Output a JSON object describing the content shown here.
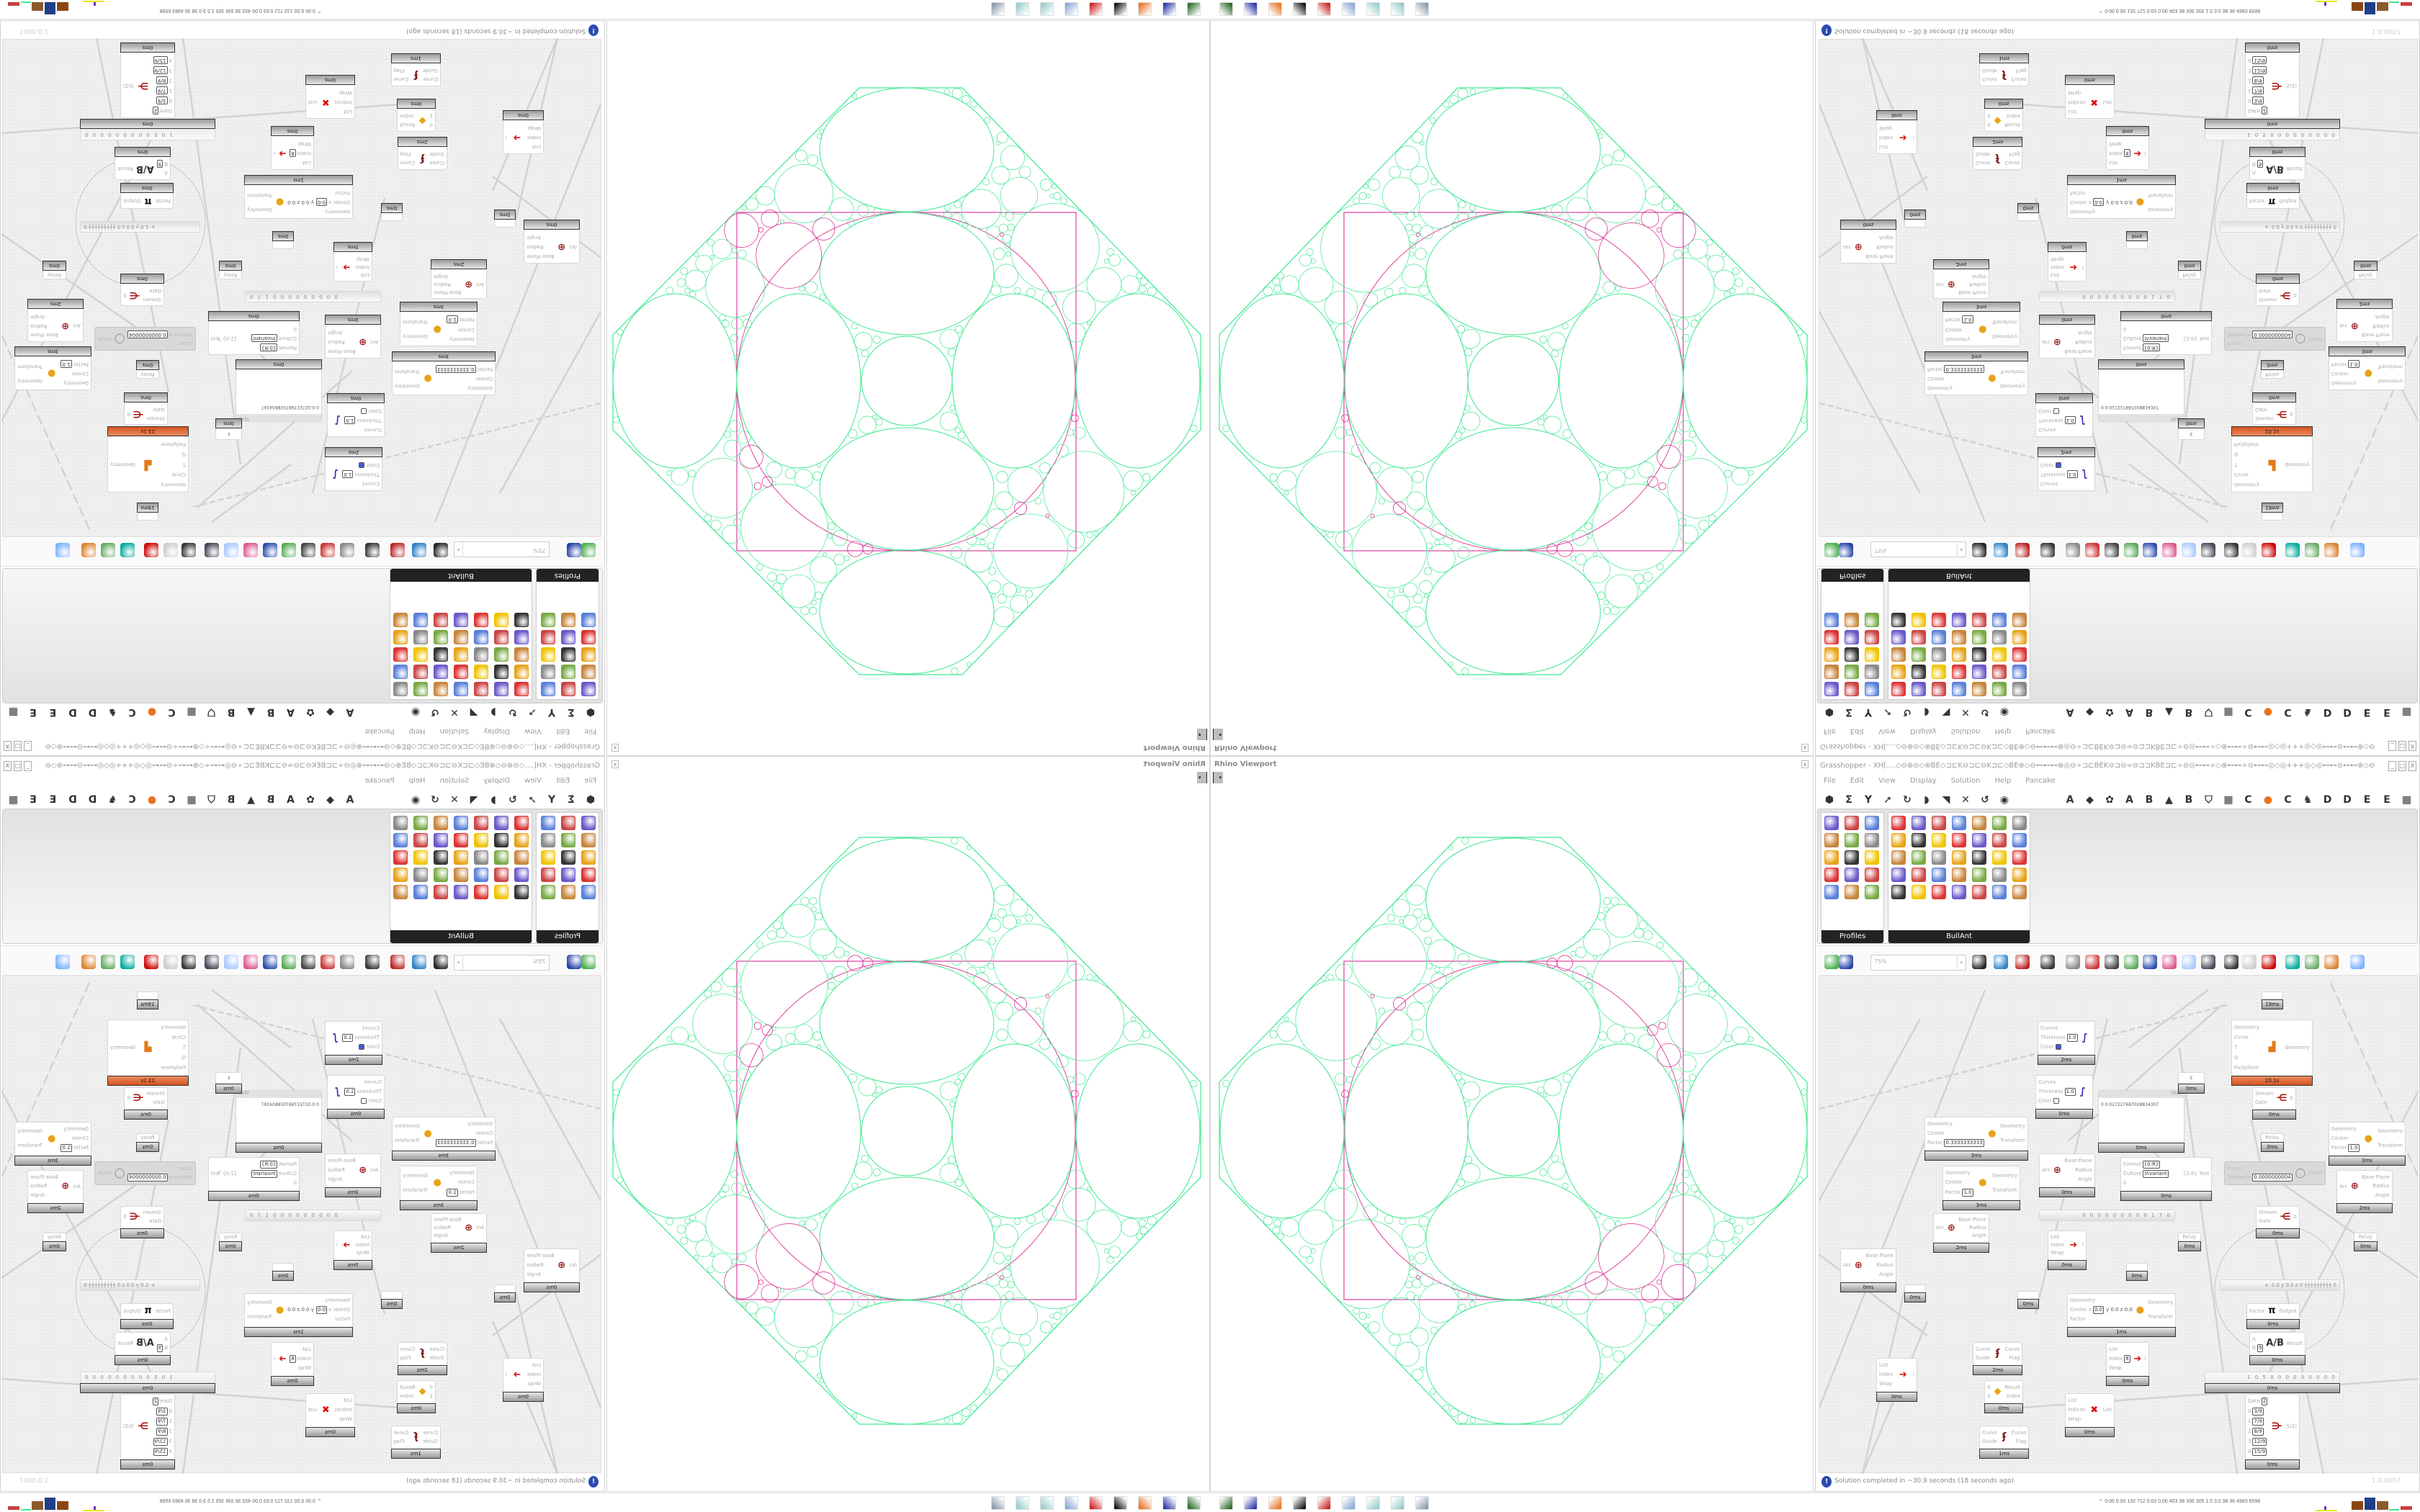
{
  "viewport": {
    "title": "Rhino Viewport",
    "close": "x",
    "dropdown": "▾",
    "colors": {
      "circles": "#3ee890",
      "frame": "#d81b8c"
    }
  },
  "grasshopper": {
    "title": "Grasshopper - XH[....◇⊖⊕⊖◇⊕BE◇⊐⊏K⊖⊐⊏⊖K⊐⊏◇BE⊕◇⊖⊷⊷⊷⊕◎⊖÷⊐⊏BEK⊖⊐⊖∞⊖⊐⊐KBE⊐⊏÷⊖◎⊷⊷÷◇⊕⊷⊷÷⊖⊷⊷◎◇◎+++◎◇◎⊷⊷⊖⊷⊷⊕◇⊖⊷⊷◎⊖÷⊐⊏BEK⊖⊐⊖∞⊖...",
    "window_buttons": [
      "_",
      "□",
      "X"
    ],
    "menu": [
      "File",
      "Edit",
      "View",
      "Display",
      "Solution",
      "Help",
      "Pancake"
    ],
    "tab_icons_left": [
      "⬢",
      "Σ",
      "Y",
      "➚",
      "↻",
      "◗",
      "◥",
      "✕",
      "↺",
      "◉"
    ],
    "tab_icons_right": [
      "A",
      "◆",
      "✿",
      "A",
      "B",
      "▲",
      "B",
      "⛉",
      "▦",
      "C",
      "●",
      "C",
      "♞",
      "D",
      "D",
      "E",
      "E",
      "▦"
    ],
    "palettes": [
      {
        "label": "Profiles"
      },
      {
        "label": "BullAnt"
      }
    ],
    "toolbar": {
      "zoom": "75%",
      "zoom_arrow": "▾"
    },
    "status": {
      "icon": "!",
      "text": "Solution completed in ~30.9 seconds (18 seconds ago)",
      "version": "1.0.0007"
    },
    "accent": "#d4541f"
  },
  "canvas": {
    "components": [
      {
        "kind": "std",
        "name": "custom-preview",
        "inputs": [
          {
            "label": "Curves"
          },
          {
            "label": "Thickness",
            "value": "1.0"
          },
          {
            "label": "Color",
            "swatch": "#3b5bdb"
          }
        ],
        "outputs": [],
        "glyph": "∫",
        "glyph_color": "#3a1fb0",
        "footer": "2ms"
      },
      {
        "kind": "std",
        "name": "custom-preview",
        "inputs": [
          {
            "label": "Curves"
          },
          {
            "label": "Thickness",
            "value": "1.0"
          },
          {
            "label": "Color",
            "swatch": "#ffffff"
          }
        ],
        "outputs": [],
        "glyph": "∫",
        "glyph_color": "#3a1fb0",
        "footer": "0ms"
      },
      {
        "kind": "std",
        "name": "scale",
        "inputs": [
          {
            "label": "Geometry"
          },
          {
            "label": "Center"
          },
          {
            "label": "Factor",
            "value": "0.3333333333"
          }
        ],
        "outputs": [
          {
            "label": "Geometry"
          },
          {
            "label": "Transform"
          }
        ],
        "glyph": "●",
        "glyph_color": "#e8a317",
        "footer": "3ms"
      },
      {
        "kind": "std",
        "name": "scale",
        "inputs": [
          {
            "label": "Geometry"
          },
          {
            "label": "Center"
          },
          {
            "label": "Factor",
            "value": "1.0"
          }
        ],
        "outputs": [
          {
            "label": "Geometry"
          },
          {
            "label": "Transform"
          }
        ],
        "glyph": "●",
        "glyph_color": "#e8a317",
        "footer": "3ms"
      },
      {
        "kind": "std",
        "name": "deconstruct-arc",
        "inputs": [
          {
            "label": "Arc"
          }
        ],
        "outputs": [
          {
            "label": "Base Plane"
          },
          {
            "label": "Radius"
          },
          {
            "label": "Angle"
          }
        ],
        "glyph": "⊕",
        "glyph_color": "#9b1b1b",
        "footer": "2ms"
      },
      {
        "kind": "std",
        "name": "deconstruct-arc",
        "inputs": [
          {
            "label": "Arc"
          }
        ],
        "outputs": [
          {
            "label": "Base Plane"
          },
          {
            "label": "Radius"
          },
          {
            "label": "Angle"
          }
        ],
        "glyph": "⊕",
        "glyph_color": "#9b1b1b",
        "footer": "0ms"
      },
      {
        "kind": "panel",
        "name": "panel",
        "header": "(0;0)",
        "index": "0",
        "value": "0.027227687028834307",
        "footer": "0ms"
      },
      {
        "kind": "std",
        "name": "param",
        "inputs": [],
        "outputs": [],
        "center": "c",
        "footer": "0ms"
      },
      {
        "kind": "std",
        "name": "format",
        "inputs": [
          {
            "label": "Format",
            "value": "{0:R}"
          },
          {
            "label": "Culture",
            "value": "Invariant"
          },
          {
            "label": "0"
          }
        ],
        "outputs": [
          {
            "label": "{2;0} Text"
          }
        ],
        "glyph": "",
        "footer": "0ms"
      },
      {
        "kind": "slider",
        "name": "number-slider",
        "digits": "0 0 0 0 0 0 0 0 0 1 7 0"
      },
      {
        "kind": "std",
        "name": "list-item",
        "inputs": [
          {
            "label": "List"
          },
          {
            "label": "Index"
          },
          {
            "label": "Wrap"
          }
        ],
        "outputs": [
          {
            "label": "i"
          }
        ],
        "glyph": "➜",
        "glyph_color": "#d11",
        "footer": "0ms"
      },
      {
        "kind": "relay",
        "name": "relay",
        "label": "Relay",
        "footer": "0ms"
      },
      {
        "kind": "relay",
        "name": "relay",
        "label": "",
        "footer": "19ms"
      },
      {
        "kind": "std",
        "name": "circle-packing-component",
        "inputs": [
          {
            "label": "Geometry"
          },
          {
            "label": "Circle"
          },
          {
            "label": "T"
          },
          {
            "label": "Q"
          },
          {
            "label": "FixSphere"
          }
        ],
        "outputs": [
          {
            "label": "Geometry"
          }
        ],
        "glyph": "▟",
        "glyph_color": "#e07b1a",
        "footer": "23.1s",
        "hot": true
      },
      {
        "kind": "std",
        "name": "stream-gate",
        "inputs": [
          {
            "label": "Stream"
          },
          {
            "label": "Gate"
          }
        ],
        "outputs": [
          {
            "label": "0"
          }
        ],
        "glyph": "⋲",
        "glyph_color": "#a11",
        "footer": "0ms"
      },
      {
        "kind": "relay",
        "name": "relay",
        "label": "Relay",
        "footer": "0ms"
      },
      {
        "kind": "disabled",
        "name": "curve-to-circle",
        "inputs": [
          {
            "label": "Curve"
          },
          {
            "label": "Tolerance",
            "value": "0.0000000004"
          }
        ],
        "outputs": [
          {
            "label": "Circle"
          }
        ],
        "glyph": "◯",
        "glyph_color": "#888"
      },
      {
        "kind": "std",
        "name": "scale",
        "inputs": [
          {
            "label": "Geometry"
          },
          {
            "label": "Center"
          },
          {
            "label": "Factor",
            "value": "1.0"
          }
        ],
        "outputs": [
          {
            "label": "Geometry"
          },
          {
            "label": "Transform"
          }
        ],
        "glyph": "●",
        "glyph_color": "#e8a317",
        "footer": "3ms"
      },
      {
        "kind": "std",
        "name": "deconstruct-arc",
        "inputs": [
          {
            "label": "Arc"
          }
        ],
        "outputs": [
          {
            "label": "Base Plane"
          },
          {
            "label": "Radius"
          },
          {
            "label": "Angle"
          }
        ],
        "glyph": "⊕",
        "glyph_color": "#9b1b1b",
        "footer": "2ms"
      },
      {
        "kind": "std",
        "name": "stream-gate",
        "inputs": [
          {
            "label": "Stream"
          },
          {
            "label": "Gate"
          }
        ],
        "outputs": [
          {
            "label": "0"
          }
        ],
        "glyph": "⋲",
        "glyph_color": "#a11",
        "footer": "0ms"
      },
      {
        "kind": "relay",
        "name": "relay",
        "label": "Relay",
        "footer": "0ms"
      },
      {
        "kind": "std",
        "name": "deconstruct-arc",
        "inputs": [
          {
            "label": "Arc"
          }
        ],
        "outputs": [
          {
            "label": "Base Plane"
          },
          {
            "label": "Radius"
          },
          {
            "label": "Angle"
          }
        ],
        "glyph": "⊕",
        "glyph_color": "#9b1b1b",
        "footer": "0ms"
      },
      {
        "kind": "relay",
        "name": "relay",
        "label": "",
        "footer": "0ms"
      },
      {
        "kind": "relay",
        "name": "relay",
        "label": "",
        "footer": "0ms"
      },
      {
        "kind": "relay",
        "name": "relay",
        "label": "",
        "footer": "0ms"
      },
      {
        "kind": "std",
        "name": "scale",
        "inputs": [
          {
            "label": "Geometry"
          },
          {
            "label": "Center x",
            "value": "0.0"
          },
          {
            "label": "Factor"
          }
        ],
        "outputs": [
          {
            "label": "Geometry"
          },
          {
            "label": "Transform"
          }
        ],
        "center": "y 0.0  z 0.0",
        "glyph": "●",
        "glyph_color": "#e8a317",
        "footer": "1ms"
      },
      {
        "kind": "std",
        "name": "flip-curve",
        "inputs": [
          {
            "label": "Curve"
          },
          {
            "label": "Guide"
          }
        ],
        "outputs": [
          {
            "label": "Curve"
          },
          {
            "label": "Flag"
          }
        ],
        "glyph": "ʄ",
        "glyph_color": "#7a1010",
        "footer": "2ms"
      },
      {
        "kind": "std",
        "name": "list-item",
        "inputs": [
          {
            "label": "List"
          },
          {
            "label": "Index"
          },
          {
            "label": "Wrap"
          }
        ],
        "outputs": [
          {
            "label": "i"
          }
        ],
        "glyph": "➜",
        "glyph_color": "#d11",
        "footer": "0ms"
      },
      {
        "kind": "std",
        "name": "list-item",
        "inputs": [
          {
            "label": "List"
          },
          {
            "label": "Index",
            "value": "8"
          },
          {
            "label": "Wrap"
          }
        ],
        "outputs": [
          {
            "label": "i"
          }
        ],
        "glyph": "➜",
        "glyph_color": "#d11",
        "footer": "0ms"
      },
      {
        "kind": "std",
        "name": "stream-filter",
        "inputs": [
          {
            "label": "0"
          },
          {
            "label": "1"
          }
        ],
        "outputs": [
          {
            "label": "Result"
          },
          {
            "label": "Index"
          }
        ],
        "glyph": "◆",
        "glyph_color": "#e8a317",
        "footer": "0ms"
      },
      {
        "kind": "std",
        "name": "cull-index",
        "inputs": [
          {
            "label": "List"
          },
          {
            "label": "Indices"
          },
          {
            "label": "Wrap"
          }
        ],
        "outputs": [
          {
            "label": "List"
          }
        ],
        "glyph": "✖",
        "glyph_color": "#d11",
        "footer": "0ms"
      },
      {
        "kind": "std",
        "name": "flip-curve",
        "inputs": [
          {
            "label": "Curve"
          },
          {
            "label": "Guide"
          }
        ],
        "outputs": [
          {
            "label": "Curve"
          },
          {
            "label": "Flag"
          }
        ],
        "glyph": "ʄ",
        "glyph_color": "#7a1010",
        "footer": "1ms"
      },
      {
        "kind": "slider",
        "name": "md-slider",
        "digits": "x -1.0  y 0.0  z 0  ┼┼┼┼┼┼┼┼┼ 0"
      },
      {
        "kind": "std",
        "name": "pi",
        "inputs": [
          {
            "label": "Factor"
          }
        ],
        "outputs": [
          {
            "label": "Output"
          }
        ],
        "glyph": "π",
        "glyph_color": "#111",
        "footer": "0ms"
      },
      {
        "kind": "std",
        "name": "division",
        "inputs": [
          {
            "label": "A"
          },
          {
            "label": "B",
            "value": "9"
          }
        ],
        "outputs": [
          {
            "label": "Result"
          }
        ],
        "glyph": "A/B",
        "glyph_color": "#333",
        "footer": "0ms"
      },
      {
        "kind": "slider",
        "name": "number-slider",
        "digits": "1 0 5 0 0 0 0 0 0 0 0 0",
        "footer": "0ms"
      },
      {
        "kind": "std",
        "name": "stream-filter",
        "inputs": [
          {
            "label": "Gate",
            "value": "2"
          },
          {
            "label": "0",
            "value": "3/9"
          },
          {
            "label": "1",
            "value": "7/9"
          },
          {
            "label": "2",
            "value": "8/9"
          },
          {
            "label": "3",
            "value": "12/9"
          },
          {
            "label": "4",
            "value": "15/9"
          }
        ],
        "outputs": [
          {
            "label": "S(2)"
          }
        ],
        "glyph": "⋺",
        "glyph_color": "#a11",
        "footer": "0ms"
      }
    ]
  },
  "bottom": {
    "taskbar_icons": [
      "app-icon",
      "floppy-64-icon",
      "firefox-icon",
      "inkscape-icon",
      "red-app-icon",
      "calculator-icon",
      "notepad-icon",
      "notepad-icon",
      "printer-icon"
    ],
    "perf_caret": "^",
    "perf_text": "0.00 0.00  132  712 0.03 0.00  403   38   336  305   1.5   3.0   38    36  4983 6598"
  }
}
